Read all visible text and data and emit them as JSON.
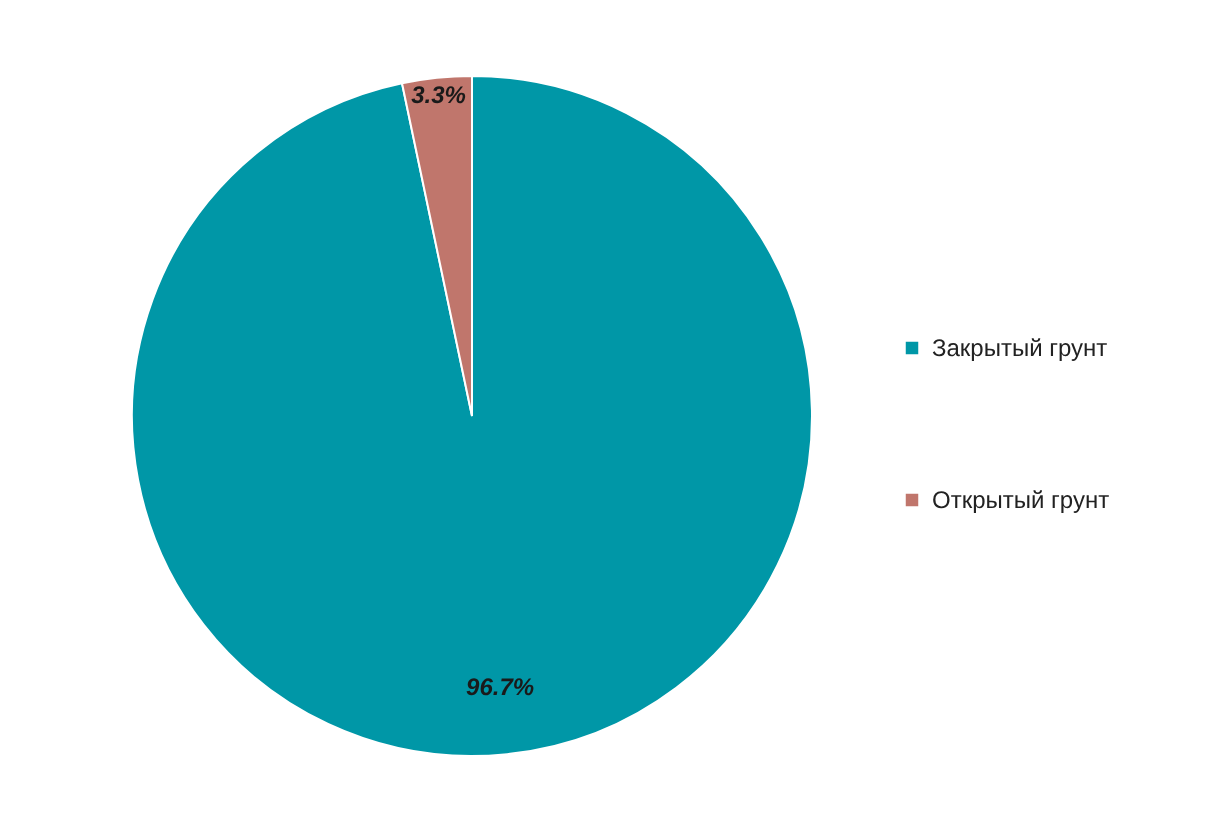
{
  "chart_data": {
    "type": "pie",
    "categories": [
      "Закрытый грунт",
      "Открытый грунт"
    ],
    "values": [
      96.7,
      3.3
    ],
    "colors": [
      "#0097a7",
      "#c0766c"
    ],
    "value_labels": [
      "96.7%",
      "3.3%"
    ],
    "legend": "right"
  }
}
